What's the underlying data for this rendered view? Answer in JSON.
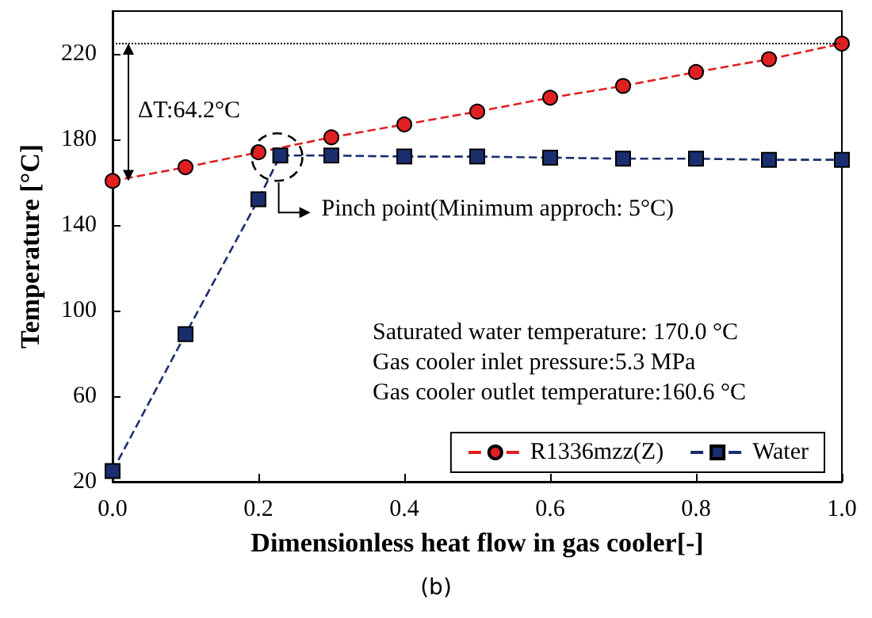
{
  "chart_data": {
    "type": "line",
    "xlabel": "Dimensionless heat flow in gas cooler[-]",
    "ylabel": "Temperature [°C]",
    "xlim": [
      0,
      1
    ],
    "xticks": [
      {
        "value": 0,
        "label": "0.0"
      },
      0.2,
      0.4,
      0.6,
      0.8,
      {
        "value": 1,
        "label": "1.0"
      }
    ],
    "ylim": [
      20,
      240
    ],
    "yticks": [
      20,
      60,
      100,
      140,
      180,
      220
    ],
    "grid": false,
    "legend": "bottom right",
    "line_style": "dashed",
    "series": [
      {
        "name": "R1336mzz(Z)",
        "color": "#e02020",
        "marker": "circle",
        "x": [
          0,
          0.1,
          0.2,
          0.3,
          0.4,
          0.5,
          0.6,
          0.7,
          0.8,
          0.9,
          1.0
        ],
        "values": [
          160.6,
          167,
          174,
          181,
          187,
          193,
          199.5,
          205,
          211.5,
          217.5,
          224.8
        ]
      },
      {
        "name": "Water",
        "color": "#1a2e6e",
        "marker": "square",
        "x": [
          0,
          0.1,
          0.2,
          0.23,
          0.3,
          0.4,
          0.5,
          0.6,
          0.7,
          0.8,
          0.9,
          1.0
        ],
        "values": [
          25,
          89,
          152,
          172.5,
          172.5,
          172,
          172,
          171.5,
          171,
          171,
          170.5,
          170.5
        ]
      }
    ],
    "ref_lines": [
      {
        "axis": "y",
        "value": 224.8,
        "color": "#000000",
        "line_style": "dotted"
      }
    ],
    "annotations": [
      "ΔT:64.2°C",
      {
        "text": "Pinch point(Minimum approch: 5°C)",
        "x": 0.23,
        "y": 172.5
      },
      "Saturated water temperature: 170.0 °C",
      "Gas cooler inlet pressure:5.3 MPa",
      "Gas cooler outlet temperature:160.6 °C",
      "(b)"
    ]
  }
}
